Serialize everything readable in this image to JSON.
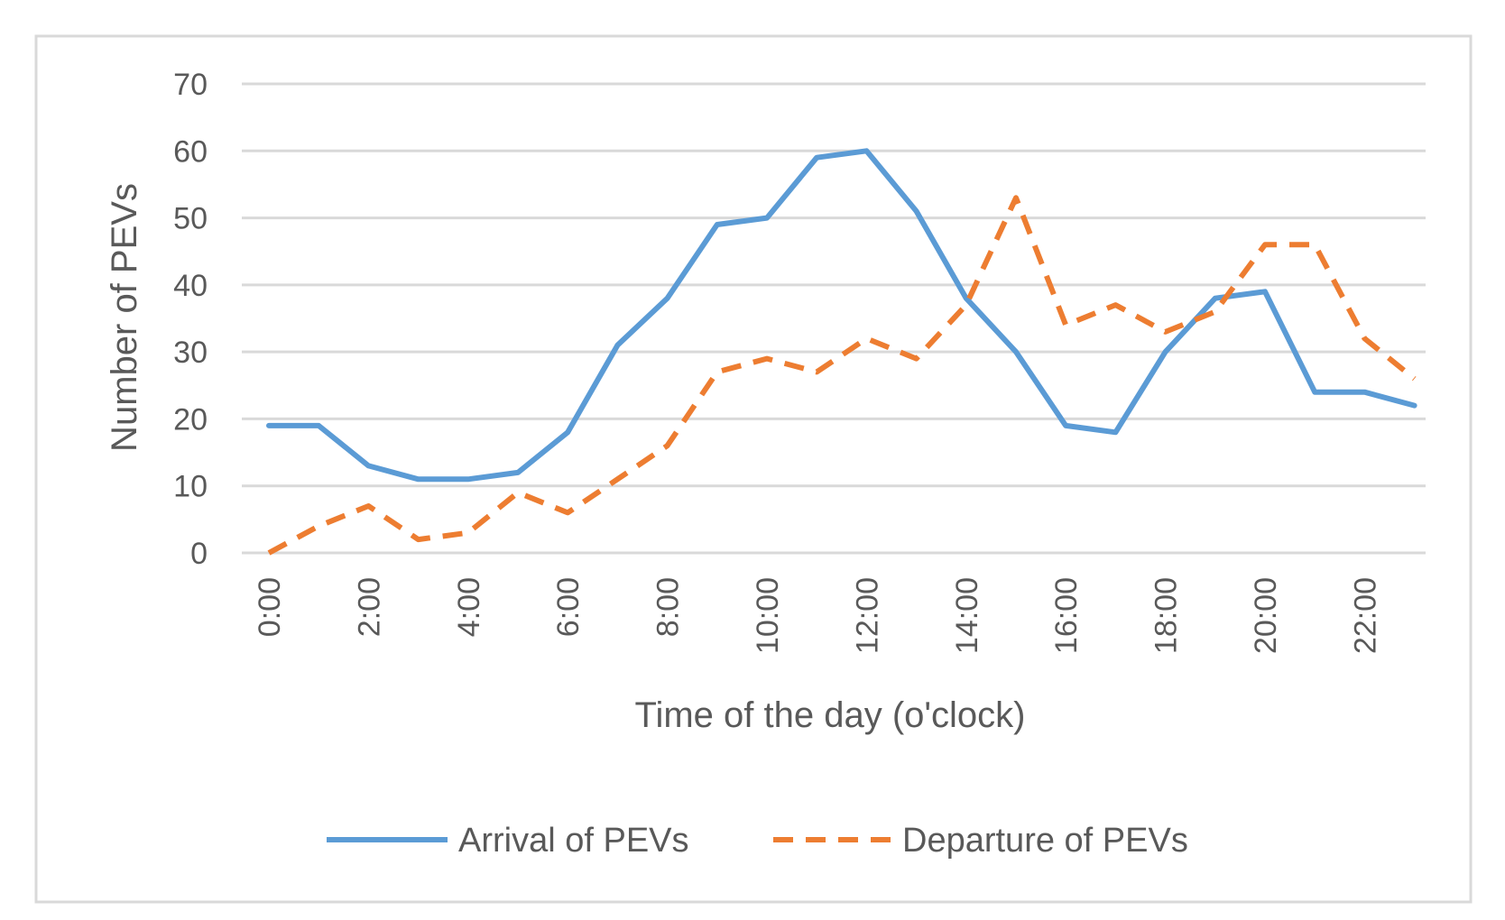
{
  "chart_data": {
    "type": "line",
    "title": "",
    "xlabel": "Time of the day (o'clock)",
    "ylabel": "Number of PEVs",
    "ylim": [
      0,
      70
    ],
    "yticks": [
      0,
      10,
      20,
      30,
      40,
      50,
      60,
      70
    ],
    "grid": true,
    "legend_position": "bottom",
    "x": [
      "0:00",
      "1:00",
      "2:00",
      "3:00",
      "4:00",
      "5:00",
      "6:00",
      "7:00",
      "8:00",
      "9:00",
      "10:00",
      "11:00",
      "12:00",
      "13:00",
      "14:00",
      "15:00",
      "16:00",
      "17:00",
      "18:00",
      "19:00",
      "20:00",
      "21:00",
      "22:00",
      "23:00"
    ],
    "xtick_labels": [
      "0:00",
      "2:00",
      "4:00",
      "6:00",
      "8:00",
      "10:00",
      "12:00",
      "14:00",
      "16:00",
      "18:00",
      "20:00",
      "22:00"
    ],
    "series": [
      {
        "name": "Arrival of PEVs",
        "color": "#5b9bd5",
        "dash": "solid",
        "values": [
          19,
          19,
          13,
          11,
          11,
          12,
          18,
          31,
          38,
          49,
          50,
          59,
          60,
          51,
          38,
          30,
          19,
          18,
          30,
          38,
          39,
          24,
          24,
          22
        ]
      },
      {
        "name": "Departure of PEVs",
        "color": "#ed7d31",
        "dash": "dashed",
        "values": [
          0,
          4,
          7,
          2,
          3,
          9,
          6,
          11,
          16,
          27,
          29,
          27,
          32,
          29,
          37,
          53,
          34,
          37,
          33,
          36,
          46,
          46,
          32,
          26
        ]
      }
    ]
  }
}
